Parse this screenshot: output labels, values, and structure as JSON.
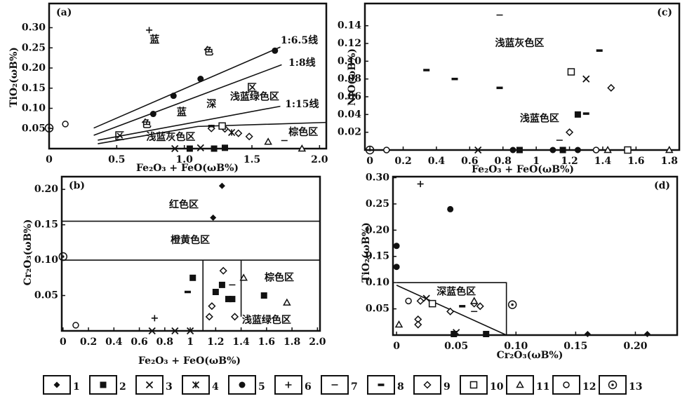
{
  "chart_data": [
    {
      "type": "scatter",
      "title": "(a)",
      "xlabel": "Fe₂O₃ + FeO(ωB%)",
      "ylabel": "TiO₂(ωB%)",
      "xlim": [
        0,
        2.05
      ],
      "ylim": [
        0,
        0.36
      ],
      "xticks": [
        0,
        0.5,
        {
          "value": 1,
          "label": "1.0"
        },
        1.5,
        {
          "value": 2,
          "label": "2.0"
        }
      ],
      "yticks": [
        0.05,
        {
          "value": 0.1,
          "label": "0.10"
        },
        0.15,
        {
          "value": 0.2,
          "label": "0.20"
        },
        0.25,
        {
          "value": 0.3,
          "label": "0.30"
        }
      ],
      "series": [
        {
          "marker": "filled-circle",
          "x": [
            0.77,
            0.92,
            1.12,
            1.67
          ],
          "y": [
            0.086,
            0.131,
            0.173,
            0.243
          ]
        },
        {
          "marker": "plus",
          "x": [
            0.74
          ],
          "y": [
            0.294
          ]
        },
        {
          "marker": "open-circle",
          "x": [
            0.12
          ],
          "y": [
            0.061
          ]
        },
        {
          "marker": "circle-dot",
          "x": [
            0
          ],
          "y": [
            0.051
          ]
        },
        {
          "marker": "filled-square",
          "x": [
            1.04,
            1.22,
            1.3
          ],
          "y": [
            0,
            0,
            0.002
          ]
        },
        {
          "marker": "cross",
          "x": [
            0.93,
            1.12
          ],
          "y": [
            0,
            0.002
          ]
        },
        {
          "marker": "star",
          "x": [
            1.35
          ],
          "y": [
            0.04
          ]
        },
        {
          "marker": "open-diamond",
          "x": [
            1.3,
            1.4,
            1.48,
            1.2
          ],
          "y": [
            0.049,
            0.038,
            0.03,
            0.05
          ]
        },
        {
          "marker": "open-triangle",
          "x": [
            1.62,
            1.87
          ],
          "y": [
            0.017,
            0
          ]
        },
        {
          "marker": "thin-dash",
          "x": [
            1.74
          ],
          "y": [
            0.02
          ]
        },
        {
          "marker": "thick-dash",
          "x": [
            1.2
          ],
          "y": [
            0.056
          ]
        },
        {
          "marker": "open-square",
          "x": [
            1.28
          ],
          "y": [
            0.056
          ]
        }
      ],
      "lines": [
        {
          "x": [
            0.33,
            1.71
          ],
          "y": [
            0.051,
            0.252
          ]
        },
        {
          "x": [
            0.33,
            1.72
          ],
          "y": [
            0.033,
            0.208
          ]
        },
        {
          "x": [
            0.36,
            1.71
          ],
          "y": [
            0.021,
            0.105
          ]
        },
        {
          "x": [
            0.36,
            1.1,
            2.05
          ],
          "y": [
            0.012,
            0.055,
            0.065
          ]
        }
      ],
      "annotations": [
        {
          "text": "蓝",
          "x": 0.78,
          "y": 0.27
        },
        {
          "text": "色",
          "x": 1.18,
          "y": 0.24
        },
        {
          "text": "区",
          "x": 1.5,
          "y": 0.15
        },
        {
          "text": "深",
          "x": 1.2,
          "y": 0.11
        },
        {
          "text": "蓝",
          "x": 0.98,
          "y": 0.09
        },
        {
          "text": "色",
          "x": 0.72,
          "y": 0.06
        },
        {
          "text": "区",
          "x": 0.52,
          "y": 0.03
        },
        {
          "text": "浅蓝绿色区",
          "x": 1.52,
          "y": 0.128
        },
        {
          "text": "浅蓝灰色区",
          "x": 0.9,
          "y": 0.028
        },
        {
          "text": "棕色区",
          "x": 1.88,
          "y": 0.04
        },
        {
          "text": "1:6.5线",
          "x": 1.85,
          "y": 0.268
        },
        {
          "text": "1:8线",
          "x": 1.87,
          "y": 0.212
        },
        {
          "text": "1:15线",
          "x": 1.87,
          "y": 0.11
        }
      ]
    },
    {
      "type": "scatter",
      "title": "(c)",
      "xlabel": "Fe₂O₃ + FeO(ωB%)",
      "ylabel": "NiO(ωB%)",
      "xlim": [
        -0.03,
        1.86
      ],
      "ylim": [
        0,
        0.165
      ],
      "xticks": [
        0,
        0.2,
        0.4,
        0.6,
        0.8,
        1,
        1.2,
        1.4,
        1.6,
        1.8
      ],
      "yticks": [
        0.02,
        0.04,
        0.06,
        0.08,
        {
          "value": 0.1,
          "label": "0.10"
        },
        0.12,
        0.14
      ],
      "series": [
        {
          "marker": "thick-dash",
          "x": [
            0.34,
            0.51,
            0.78,
            1.38,
            1.3
          ],
          "y": [
            0.09,
            0.08,
            0.07,
            0.112,
            0.041
          ]
        },
        {
          "marker": "thin-dash",
          "x": [
            0.78,
            1.14
          ],
          "y": [
            0.152,
            0.011
          ]
        },
        {
          "marker": "open-square",
          "x": [
            1.21,
            1.55
          ],
          "y": [
            0.088,
            0
          ]
        },
        {
          "marker": "cross",
          "x": [
            1.3,
            0.65
          ],
          "y": [
            0.08,
            0
          ]
        },
        {
          "marker": "open-diamond",
          "x": [
            1.45,
            1.2
          ],
          "y": [
            0.07,
            0.02
          ]
        },
        {
          "marker": "filled-square",
          "x": [
            1.25,
            0.9,
            1.16
          ],
          "y": [
            0.04,
            0,
            0
          ]
        },
        {
          "marker": "filled-circle",
          "x": [
            0.86,
            1.1,
            1.25
          ],
          "y": [
            0,
            0,
            0
          ]
        },
        {
          "marker": "open-circle",
          "x": [
            0.1,
            1.36
          ],
          "y": [
            0,
            0
          ]
        },
        {
          "marker": "circle-dot",
          "x": [
            0
          ],
          "y": [
            0
          ]
        },
        {
          "marker": "open-triangle",
          "x": [
            1.43,
            1.8
          ],
          "y": [
            0,
            0
          ]
        }
      ],
      "lines": [],
      "annotations": [
        {
          "text": "浅蓝灰色区",
          "x": 0.9,
          "y": 0.12
        },
        {
          "text": "浅蓝色区",
          "x": 1.02,
          "y": 0.035
        }
      ]
    },
    {
      "type": "scatter",
      "title": "(b)",
      "xlabel": "Fe₂O₃ + FeO(ωB%)",
      "ylabel": "Cr₂O₃(ωB%)",
      "xlim": [
        -0.01,
        2.02
      ],
      "ylim": [
        0,
        0.218
      ],
      "xticks": [
        0,
        0.2,
        0.4,
        0.6,
        0.8,
        1,
        1.2,
        1.4,
        1.6,
        1.8,
        {
          "value": 2,
          "label": "2.0"
        }
      ],
      "yticks": [
        0.05,
        {
          "value": 0.1,
          "label": "0.10"
        },
        0.15,
        {
          "value": 0.2,
          "label": "0.20"
        }
      ],
      "series": [
        {
          "marker": "filled-diamond",
          "x": [
            1.25,
            1.18
          ],
          "y": [
            0.205,
            0.16
          ]
        },
        {
          "marker": "filled-square",
          "x": [
            1.02,
            1.2,
            1.3,
            1.33,
            1.58,
            1.25
          ],
          "y": [
            0.075,
            0.055,
            0.045,
            0.045,
            0.05,
            0.065
          ]
        },
        {
          "marker": "thick-dash",
          "x": [
            0.98
          ],
          "y": [
            0.055
          ]
        },
        {
          "marker": "thin-dash",
          "x": [
            1.33
          ],
          "y": [
            0.065
          ]
        },
        {
          "marker": "plus",
          "x": [
            0.72
          ],
          "y": [
            0.018
          ]
        },
        {
          "marker": "open-circle",
          "x": [
            0.1
          ],
          "y": [
            0.008
          ]
        },
        {
          "marker": "circle-dot",
          "x": [
            0
          ],
          "y": [
            0.105
          ]
        },
        {
          "marker": "open-diamond",
          "x": [
            1.26,
            1.15,
            1.35,
            1.17
          ],
          "y": [
            0.085,
            0.02,
            0.02,
            0.035
          ]
        },
        {
          "marker": "open-triangle",
          "x": [
            1.42,
            1.76
          ],
          "y": [
            0.075,
            0.04
          ]
        },
        {
          "marker": "cross",
          "x": [
            0.7,
            0.88,
            1
          ],
          "y": [
            0,
            0,
            0
          ]
        }
      ],
      "lines": [
        {
          "x": [
            -0.01,
            2.02
          ],
          "y": [
            0.155,
            0.155
          ]
        },
        {
          "x": [
            -0.01,
            2.02
          ],
          "y": [
            0.1,
            0.1
          ]
        },
        {
          "x": [
            1.1,
            1.1
          ],
          "y": [
            0.1,
            0
          ]
        },
        {
          "x": [
            1.4,
            1.4
          ],
          "y": [
            0.1,
            0.02
          ]
        }
      ],
      "annotations": [
        {
          "text": "红色区",
          "x": 0.95,
          "y": 0.178
        },
        {
          "text": "橙黄色区",
          "x": 1.0,
          "y": 0.128
        },
        {
          "text": "棕色区",
          "x": 1.7,
          "y": 0.075
        },
        {
          "text": "浅蓝绿色区",
          "x": 1.6,
          "y": 0.015
        }
      ]
    },
    {
      "type": "scatter",
      "title": "(d)",
      "xlabel": "Cr₂O₃(ωB%)",
      "ylabel": "TiO₂(ωB%)",
      "xlim": [
        -0.003,
        0.235
      ],
      "ylim": [
        0,
        0.302
      ],
      "xticks": [
        0,
        0.05,
        {
          "value": 0.1,
          "label": "0.10"
        },
        0.15,
        {
          "value": 0.2,
          "label": "0.20"
        }
      ],
      "yticks": [
        0.05,
        {
          "value": 0.1,
          "label": "0.10"
        },
        0.15,
        {
          "value": 0.2,
          "label": "0.20"
        },
        0.25,
        {
          "value": 0.3,
          "label": "0.30"
        }
      ],
      "series": [
        {
          "marker": "plus",
          "x": [
            0.02
          ],
          "y": [
            0.288
          ]
        },
        {
          "marker": "filled-circle",
          "x": [
            0.045,
            0,
            0
          ],
          "y": [
            0.24,
            0.17,
            0.13
          ]
        },
        {
          "marker": "open-diamond",
          "x": [
            0.02,
            0.018,
            0.018,
            0.045,
            0.07,
            0.065
          ],
          "y": [
            0.065,
            0.03,
            0.02,
            0.045,
            0.055,
            0.06
          ]
        },
        {
          "marker": "open-circle",
          "x": [
            0.01
          ],
          "y": [
            0.065
          ]
        },
        {
          "marker": "circle-dot",
          "x": [
            0.097
          ],
          "y": [
            0.058
          ]
        },
        {
          "marker": "open-square",
          "x": [
            0.03
          ],
          "y": [
            0.06
          ]
        },
        {
          "marker": "cross",
          "x": [
            0.025,
            0.05
          ],
          "y": [
            0.07,
            0.005
          ]
        },
        {
          "marker": "open-triangle",
          "x": [
            0.065,
            0.002
          ],
          "y": [
            0.065,
            0.02
          ]
        },
        {
          "marker": "thin-dash",
          "x": [
            0.065
          ],
          "y": [
            0.045
          ]
        },
        {
          "marker": "thick-dash",
          "x": [
            0.055
          ],
          "y": [
            0.055
          ]
        },
        {
          "marker": "filled-square",
          "x": [
            0.048,
            0.075
          ],
          "y": [
            0.002,
            0.002
          ]
        },
        {
          "marker": "filled-diamond",
          "x": [
            0.16,
            0.21
          ],
          "y": [
            0.002,
            0.002
          ]
        }
      ],
      "lines": [
        {
          "x": [
            0,
            0.092,
            0.092
          ],
          "y": [
            0.1,
            0.1,
            0
          ]
        },
        {
          "x": [
            0,
            0.092
          ],
          "y": [
            0.095,
            0
          ]
        }
      ],
      "annotations": [
        {
          "text": "深蓝色区",
          "x": 0.05,
          "y": 0.082
        }
      ]
    }
  ],
  "legend": [
    {
      "label": "1",
      "marker": "filled-diamond"
    },
    {
      "label": "2",
      "marker": "filled-square"
    },
    {
      "label": "3",
      "marker": "cross"
    },
    {
      "label": "4",
      "marker": "star"
    },
    {
      "label": "5",
      "marker": "filled-circle"
    },
    {
      "label": "6",
      "marker": "plus"
    },
    {
      "label": "7",
      "marker": "thin-dash"
    },
    {
      "label": "8",
      "marker": "thick-dash"
    },
    {
      "label": "9",
      "marker": "open-diamond"
    },
    {
      "label": "10",
      "marker": "open-square"
    },
    {
      "label": "11",
      "marker": "open-triangle"
    },
    {
      "label": "12",
      "marker": "open-circle"
    },
    {
      "label": "13",
      "marker": "circle-dot"
    }
  ]
}
